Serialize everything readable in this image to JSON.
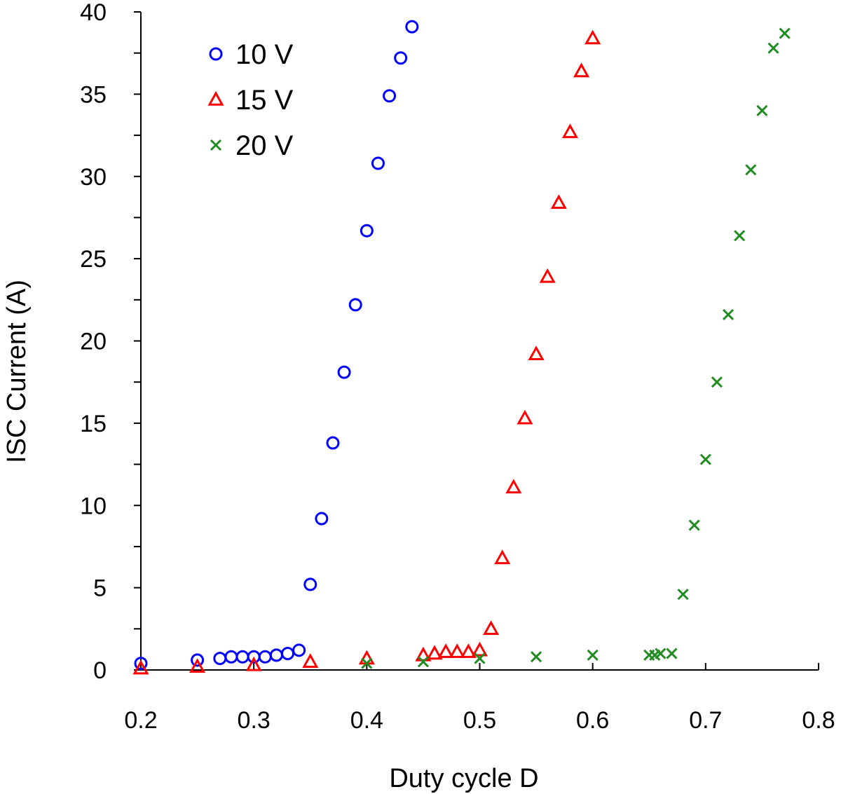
{
  "chart_data": {
    "type": "scatter",
    "title": "",
    "xlabel": "Duty cycle D",
    "ylabel": "ISC Current (A)",
    "xlim": [
      0.2,
      0.8
    ],
    "ylim": [
      0,
      40
    ],
    "x_ticks": [
      "0.2",
      "0.3",
      "0.4",
      "0.5",
      "0.6",
      "0.7",
      "0.8"
    ],
    "y_ticks": [
      "0",
      "5",
      "10",
      "15",
      "20",
      "25",
      "30",
      "35",
      "40"
    ],
    "grid": false,
    "legend_position": "top-left",
    "series": [
      {
        "name": "10 V",
        "marker": "circle",
        "color": "#0000ff",
        "points": [
          [
            0.2,
            0.4
          ],
          [
            0.25,
            0.6
          ],
          [
            0.27,
            0.7
          ],
          [
            0.28,
            0.8
          ],
          [
            0.29,
            0.8
          ],
          [
            0.3,
            0.8
          ],
          [
            0.31,
            0.8
          ],
          [
            0.32,
            0.9
          ],
          [
            0.33,
            1.0
          ],
          [
            0.34,
            1.2
          ],
          [
            0.35,
            5.2
          ],
          [
            0.36,
            9.2
          ],
          [
            0.37,
            13.8
          ],
          [
            0.38,
            18.1
          ],
          [
            0.39,
            22.2
          ],
          [
            0.4,
            26.7
          ],
          [
            0.41,
            30.8
          ],
          [
            0.42,
            34.9
          ],
          [
            0.43,
            37.2
          ],
          [
            0.44,
            39.1
          ]
        ]
      },
      {
        "name": "15 V",
        "marker": "triangle",
        "color": "#ff0000",
        "points": [
          [
            0.2,
            0.1
          ],
          [
            0.25,
            0.2
          ],
          [
            0.3,
            0.3
          ],
          [
            0.35,
            0.5
          ],
          [
            0.4,
            0.7
          ],
          [
            0.45,
            0.9
          ],
          [
            0.46,
            1.0
          ],
          [
            0.47,
            1.1
          ],
          [
            0.48,
            1.1
          ],
          [
            0.49,
            1.1
          ],
          [
            0.5,
            1.2
          ],
          [
            0.51,
            2.5
          ],
          [
            0.52,
            6.8
          ],
          [
            0.53,
            11.1
          ],
          [
            0.54,
            15.3
          ],
          [
            0.55,
            19.2
          ],
          [
            0.56,
            23.9
          ],
          [
            0.57,
            28.4
          ],
          [
            0.58,
            32.7
          ],
          [
            0.59,
            36.4
          ],
          [
            0.6,
            38.4
          ]
        ]
      },
      {
        "name": "20 V",
        "marker": "x",
        "color": "#228b22",
        "points": [
          [
            0.4,
            0.4
          ],
          [
            0.45,
            0.5
          ],
          [
            0.5,
            0.7
          ],
          [
            0.55,
            0.8
          ],
          [
            0.6,
            0.9
          ],
          [
            0.65,
            0.9
          ],
          [
            0.655,
            0.9
          ],
          [
            0.66,
            1.0
          ],
          [
            0.67,
            1.0
          ],
          [
            0.68,
            4.6
          ],
          [
            0.69,
            8.8
          ],
          [
            0.7,
            12.8
          ],
          [
            0.71,
            17.5
          ],
          [
            0.72,
            21.6
          ],
          [
            0.73,
            26.4
          ],
          [
            0.74,
            30.4
          ],
          [
            0.75,
            34.0
          ],
          [
            0.76,
            37.8
          ],
          [
            0.77,
            38.7
          ]
        ]
      }
    ]
  }
}
